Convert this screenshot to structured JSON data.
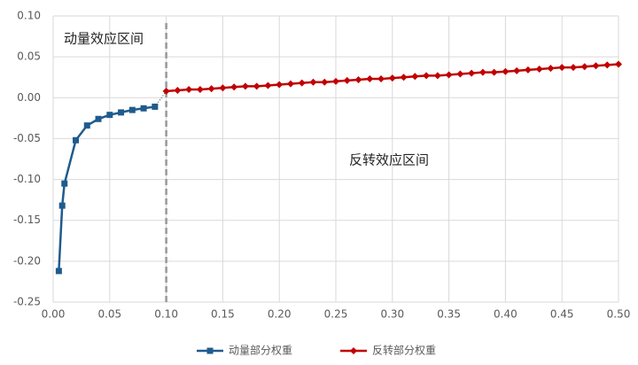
{
  "chart_data": {
    "type": "line",
    "annotations": [
      "动量效应区间",
      "反转效应区间"
    ],
    "series": [
      {
        "name": "动量部分权重",
        "color": "#1f5b8e",
        "marker": "square",
        "x": [
          0.005,
          0.008,
          0.01,
          0.02,
          0.03,
          0.04,
          0.05,
          0.06,
          0.07,
          0.08,
          0.09
        ],
        "values": [
          -0.212,
          -0.132,
          -0.105,
          -0.052,
          -0.034,
          -0.026,
          -0.021,
          -0.018,
          -0.015,
          -0.013,
          -0.011
        ]
      },
      {
        "name": "反转部分权重",
        "color": "#c00000",
        "marker": "diamond",
        "x": [
          0.1,
          0.11,
          0.12,
          0.13,
          0.14,
          0.15,
          0.16,
          0.17,
          0.18,
          0.19,
          0.2,
          0.21,
          0.22,
          0.23,
          0.24,
          0.25,
          0.26,
          0.27,
          0.28,
          0.29,
          0.3,
          0.31,
          0.32,
          0.33,
          0.34,
          0.35,
          0.36,
          0.37,
          0.38,
          0.39,
          0.4,
          0.41,
          0.42,
          0.43,
          0.44,
          0.45,
          0.46,
          0.47,
          0.48,
          0.49,
          0.5
        ],
        "values": [
          0.008,
          0.009,
          0.01,
          0.01,
          0.011,
          0.012,
          0.013,
          0.014,
          0.014,
          0.015,
          0.016,
          0.017,
          0.018,
          0.019,
          0.019,
          0.02,
          0.021,
          0.022,
          0.023,
          0.023,
          0.024,
          0.025,
          0.026,
          0.027,
          0.027,
          0.028,
          0.029,
          0.03,
          0.031,
          0.031,
          0.032,
          0.033,
          0.034,
          0.035,
          0.036,
          0.037,
          0.037,
          0.038,
          0.039,
          0.04,
          0.041
        ]
      }
    ],
    "vline": 0.1,
    "xlim": [
      0,
      0.5
    ],
    "xticks": [
      {
        "value": 0,
        "label": "0.00"
      },
      {
        "value": 0.05,
        "label": "0.05"
      },
      {
        "value": 0.1,
        "label": "0.10"
      },
      {
        "value": 0.15,
        "label": "0.15"
      },
      {
        "value": 0.2,
        "label": "0.20"
      },
      {
        "value": 0.25,
        "label": "0.25"
      },
      {
        "value": 0.3,
        "label": "0.30"
      },
      {
        "value": 0.35,
        "label": "0.35"
      },
      {
        "value": 0.4,
        "label": "0.40"
      },
      {
        "value": 0.45,
        "label": "0.45"
      },
      {
        "value": 0.5,
        "label": "0.50"
      }
    ],
    "ylim": [
      -0.25,
      0.1
    ],
    "yticks": [
      {
        "value": -0.25,
        "label": "-0.25"
      },
      {
        "value": -0.2,
        "label": "-0.20"
      },
      {
        "value": -0.15,
        "label": "-0.15"
      },
      {
        "value": -0.1,
        "label": "-0.10"
      },
      {
        "value": -0.05,
        "label": "-0.05"
      },
      {
        "value": 0,
        "label": "0.00"
      },
      {
        "value": 0.05,
        "label": "0.05"
      },
      {
        "value": 0.1,
        "label": "0.10"
      }
    ],
    "grid": true,
    "legend": "bottom"
  }
}
